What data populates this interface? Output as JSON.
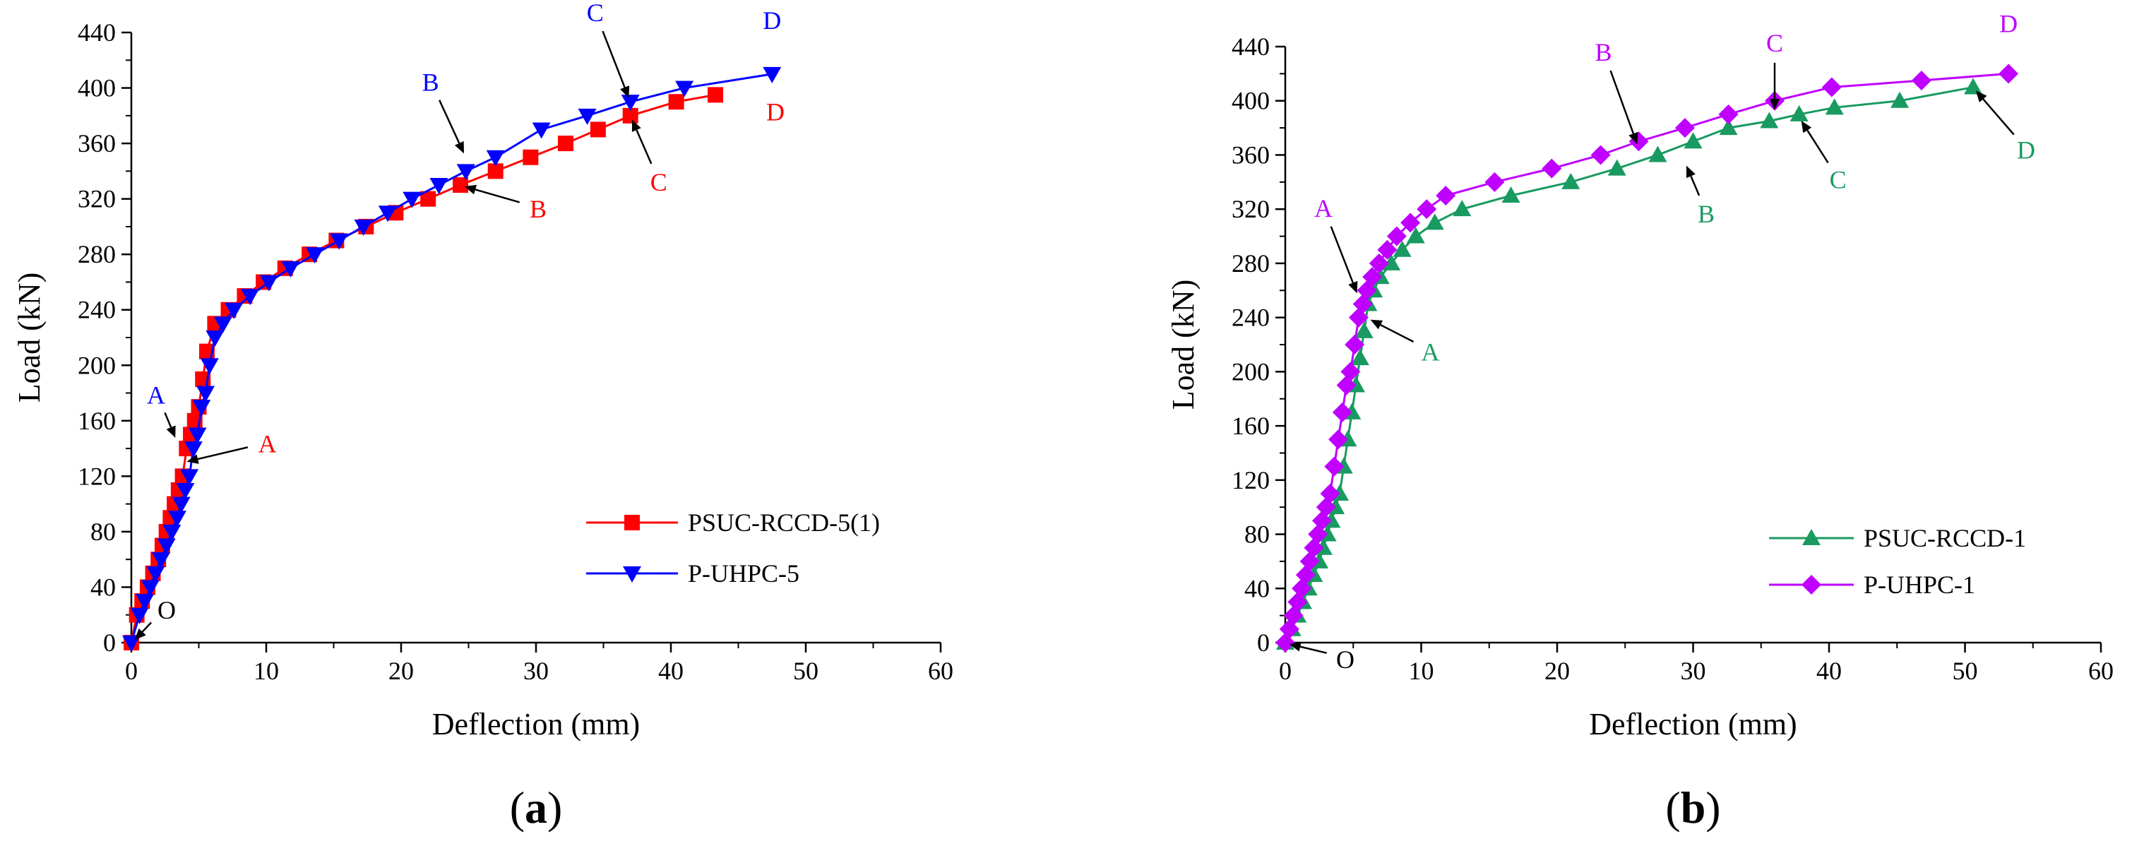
{
  "chart_data": [
    {
      "type": "line",
      "panel_label": "a",
      "xlabel": "Deflection (mm)",
      "ylabel": "Load (kN)",
      "xlim": [
        0,
        60
      ],
      "ylim": [
        0,
        440
      ],
      "xticks": [
        0,
        10,
        20,
        30,
        40,
        50,
        60
      ],
      "yticks": [
        0,
        40,
        80,
        120,
        160,
        200,
        240,
        280,
        320,
        360,
        400,
        440
      ],
      "legend_position": "bottom-right",
      "series": [
        {
          "name": "PSUC-RCCD-5(1)",
          "color": "#ff0000",
          "marker": "square",
          "x": [
            0,
            0.4,
            0.8,
            1.2,
            1.6,
            2.0,
            2.3,
            2.6,
            2.9,
            3.2,
            3.5,
            3.8,
            4.1,
            4.4,
            4.7,
            5.0,
            5.3,
            5.6,
            6.2,
            7.2,
            8.4,
            9.8,
            11.4,
            13.2,
            15.2,
            17.4,
            19.6,
            22.0,
            24.4,
            27.0,
            29.6,
            32.2,
            34.6,
            37.0,
            40.4,
            43.3
          ],
          "y": [
            0,
            20,
            30,
            40,
            50,
            60,
            70,
            80,
            90,
            100,
            110,
            120,
            140,
            150,
            160,
            170,
            190,
            210,
            230,
            240,
            250,
            260,
            270,
            280,
            290,
            300,
            310,
            320,
            330,
            340,
            350,
            360,
            370,
            380,
            390,
            395
          ]
        },
        {
          "name": "P-UHPC-5",
          "color": "#0000ff",
          "marker": "triangle-down",
          "x": [
            0,
            0.6,
            1.0,
            1.4,
            1.8,
            2.2,
            2.6,
            3.0,
            3.4,
            3.7,
            4.0,
            4.3,
            4.6,
            4.9,
            5.2,
            5.5,
            5.8,
            6.2,
            6.8,
            7.6,
            8.8,
            10.2,
            11.8,
            13.6,
            15.4,
            17.2,
            19.0,
            20.8,
            22.8,
            24.8,
            27.0,
            30.4,
            33.8,
            37.0,
            41.0,
            47.5
          ],
          "y": [
            0,
            20,
            30,
            40,
            50,
            60,
            70,
            80,
            90,
            100,
            110,
            120,
            140,
            150,
            170,
            180,
            200,
            220,
            230,
            240,
            250,
            260,
            270,
            280,
            290,
            300,
            310,
            320,
            330,
            340,
            350,
            370,
            380,
            390,
            400,
            410
          ]
        }
      ],
      "annotations": [
        {
          "label": "O",
          "color": "#000000",
          "x": 0,
          "y": 0
        },
        {
          "label": "A",
          "color": "#ff0000",
          "x": 3.8,
          "y": 130
        },
        {
          "label": "B",
          "color": "#ff0000",
          "x": 24.4,
          "y": 330
        },
        {
          "label": "C",
          "color": "#ff0000",
          "x": 37.0,
          "y": 380
        },
        {
          "label": "D",
          "color": "#ff0000",
          "x": 43.3,
          "y": 395
        },
        {
          "label": "A",
          "color": "#0000ff",
          "x": 3.4,
          "y": 145
        },
        {
          "label": "B",
          "color": "#0000ff",
          "x": 24.8,
          "y": 350
        },
        {
          "label": "C",
          "color": "#0000ff",
          "x": 37.0,
          "y": 390
        },
        {
          "label": "D",
          "color": "#0000ff",
          "x": 47.5,
          "y": 410
        }
      ]
    },
    {
      "type": "line",
      "panel_label": "b",
      "xlabel": "Deflection (mm)",
      "ylabel": "Load (kN)",
      "xlim": [
        0,
        60
      ],
      "ylim": [
        0,
        440
      ],
      "xticks": [
        0,
        10,
        20,
        30,
        40,
        50,
        60
      ],
      "yticks": [
        0,
        40,
        80,
        120,
        160,
        200,
        240,
        280,
        320,
        360,
        400,
        440
      ],
      "legend_position": "bottom-right",
      "series": [
        {
          "name": "PSUC-RCCD-1",
          "color": "#199a60",
          "marker": "triangle-up",
          "x": [
            0,
            0.5,
            0.9,
            1.3,
            1.7,
            2.1,
            2.5,
            2.8,
            3.1,
            3.4,
            3.7,
            4.0,
            4.3,
            4.6,
            4.9,
            5.2,
            5.5,
            5.8,
            6.1,
            6.5,
            7.0,
            7.8,
            8.6,
            9.6,
            11.0,
            13.0,
            16.6,
            21.0,
            24.4,
            27.4,
            30.0,
            32.6,
            35.6,
            37.8,
            40.4,
            45.2,
            50.6
          ],
          "y": [
            0,
            10,
            20,
            30,
            40,
            50,
            60,
            70,
            80,
            90,
            100,
            110,
            130,
            150,
            170,
            190,
            210,
            230,
            250,
            260,
            270,
            280,
            290,
            300,
            310,
            320,
            330,
            340,
            350,
            360,
            370,
            380,
            385,
            390,
            395,
            400,
            410
          ]
        },
        {
          "name": "P-UHPC-1",
          "color": "#bf00ff",
          "marker": "diamond",
          "x": [
            0,
            0.3,
            0.6,
            0.9,
            1.2,
            1.5,
            1.8,
            2.1,
            2.4,
            2.7,
            3.0,
            3.3,
            3.6,
            3.9,
            4.2,
            4.5,
            4.8,
            5.1,
            5.4,
            5.7,
            6.0,
            6.4,
            6.9,
            7.5,
            8.2,
            9.2,
            10.4,
            11.8,
            15.4,
            19.6,
            23.2,
            26.0,
            29.4,
            32.6,
            36.0,
            40.2,
            46.8,
            53.2
          ],
          "y": [
            0,
            10,
            20,
            30,
            40,
            50,
            60,
            70,
            80,
            90,
            100,
            110,
            130,
            150,
            170,
            190,
            200,
            220,
            240,
            250,
            260,
            270,
            280,
            290,
            300,
            310,
            320,
            330,
            340,
            350,
            360,
            370,
            380,
            390,
            400,
            410,
            415,
            420
          ]
        }
      ],
      "annotations": [
        {
          "label": "O",
          "color": "#000000",
          "x": 0,
          "y": 0
        },
        {
          "label": "A",
          "color": "#199a60",
          "x": 6.0,
          "y": 240
        },
        {
          "label": "B",
          "color": "#199a60",
          "x": 29.4,
          "y": 355
        },
        {
          "label": "C",
          "color": "#199a60",
          "x": 37.8,
          "y": 388
        },
        {
          "label": "D",
          "color": "#199a60",
          "x": 50.6,
          "y": 410
        },
        {
          "label": "A",
          "color": "#bf00ff",
          "x": 5.4,
          "y": 255
        },
        {
          "label": "B",
          "color": "#bf00ff",
          "x": 26.0,
          "y": 365
        },
        {
          "label": "C",
          "color": "#bf00ff",
          "x": 36.0,
          "y": 390
        },
        {
          "label": "D",
          "color": "#bf00ff",
          "x": 53.2,
          "y": 420
        }
      ]
    }
  ]
}
